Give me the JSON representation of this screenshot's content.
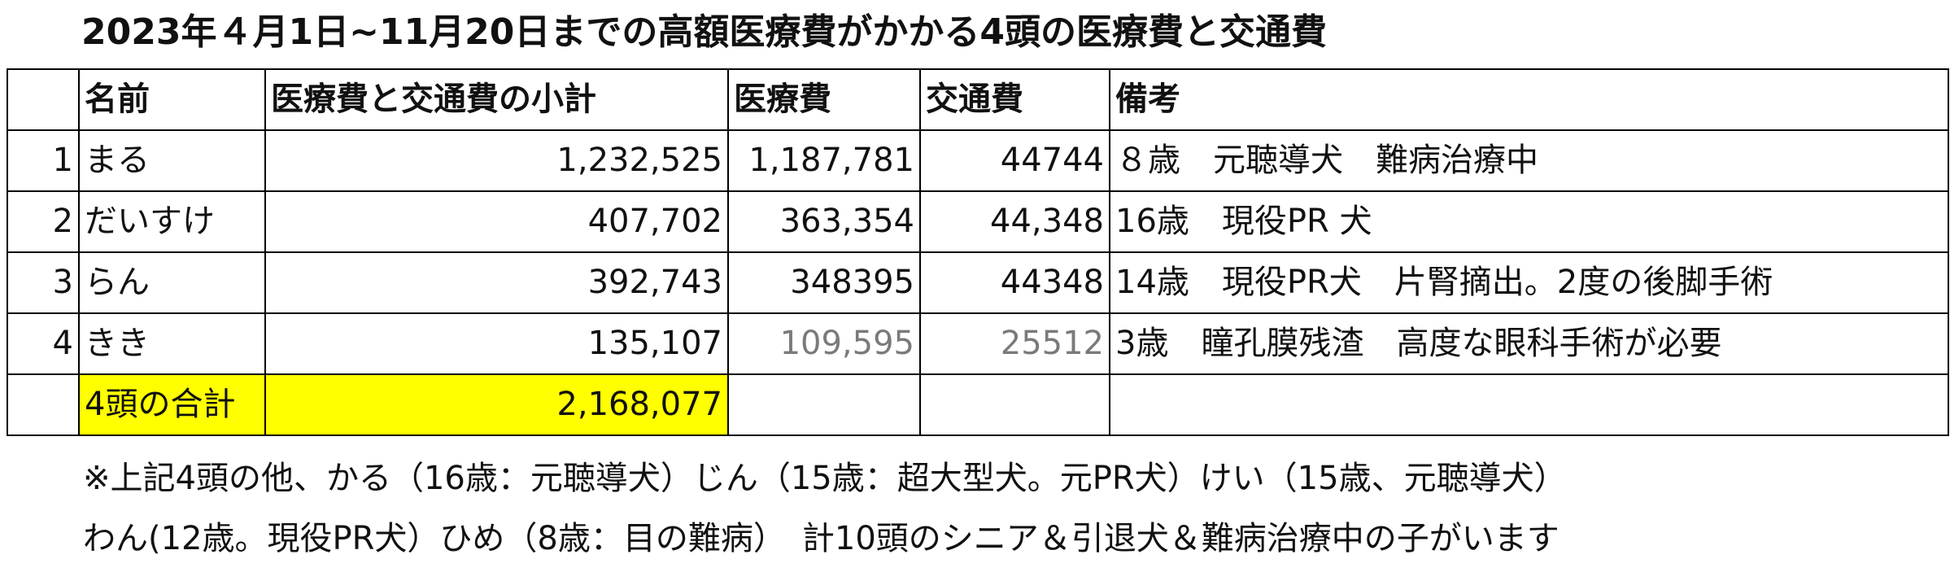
{
  "title": "2023年４月1日~11月20日までの高額医療費がかかる4頭の医療費と交通費",
  "table": {
    "headers": {
      "index": "",
      "name": "名前",
      "subtotal": "医療費と交通費の小計",
      "medical": "医療費",
      "transport": "交通費",
      "remarks": "備考"
    },
    "rows": [
      {
        "index": "1",
        "name": "まる",
        "subtotal": "1,232,525",
        "medical": "1,187,781",
        "transport": "44744",
        "remarks": "８歳　元聴導犬　難病治療中"
      },
      {
        "index": "2",
        "name": "だいすけ",
        "subtotal": "407,702",
        "medical": "363,354",
        "transport": "44,348",
        "remarks": "16歳　現役PR 犬"
      },
      {
        "index": "3",
        "name": "らん",
        "subtotal": "392,743",
        "medical": "348395",
        "transport": "44348",
        "remarks": "14歳　現役PR犬　片腎摘出。2度の後脚手術"
      },
      {
        "index": "4",
        "name": "きき",
        "subtotal": "135,107",
        "medical": "109,595",
        "transport": "25512",
        "remarks": "3歳　瞳孔膜残渣　高度な眼科手術が必要"
      }
    ],
    "total": {
      "label": "4頭の合計",
      "value": "2,168,077"
    },
    "highlight_color": "#ffff00"
  },
  "notes": {
    "line1": "※上記4頭の他、かる（16歳：元聴導犬）じん（15歳：超大型犬。元PR犬）けい（15歳、元聴導犬）",
    "line2": "わん(12歳。現役PR犬）ひめ（8歳：目の難病）　計10頭のシニア＆引退犬＆難病治療中の子がいます"
  }
}
